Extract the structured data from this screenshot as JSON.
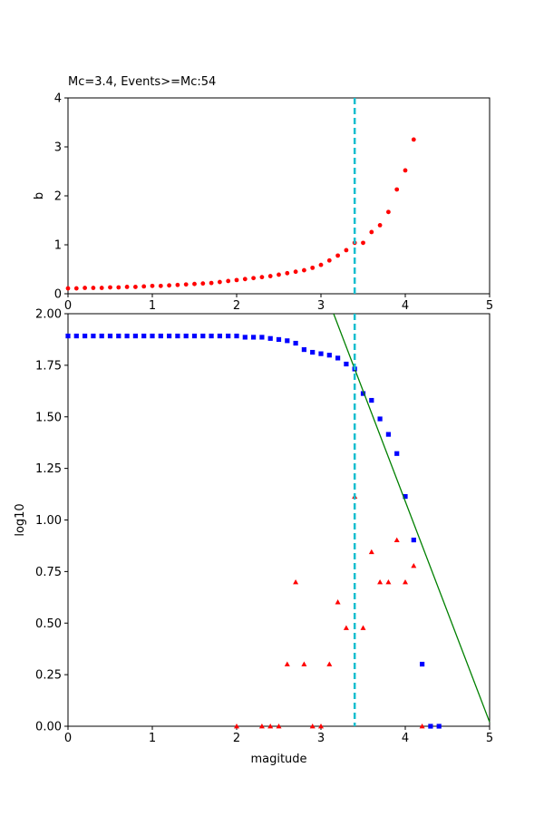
{
  "chart_data": [
    {
      "type": "scatter",
      "title": "Mc=3.4, Events>=Mc:54",
      "xlabel": "",
      "ylabel": "b",
      "xlim": [
        0,
        5
      ],
      "ylim": [
        0,
        4
      ],
      "xticks": [
        "0",
        "1",
        "2",
        "3",
        "4",
        "5"
      ],
      "yticks": [
        "0",
        "1",
        "2",
        "3",
        "4"
      ],
      "mc_line": 3.4,
      "colors": {
        "points": "#ff0000",
        "mc_line": "#17becf"
      },
      "series": [
        {
          "marker": "circle",
          "x": [
            0.0,
            0.1,
            0.2,
            0.3,
            0.4,
            0.5,
            0.6,
            0.7,
            0.8,
            0.9,
            1.0,
            1.1,
            1.2,
            1.3,
            1.4,
            1.5,
            1.6,
            1.7,
            1.8,
            1.9,
            2.0,
            2.1,
            2.2,
            2.3,
            2.4,
            2.5,
            2.6,
            2.7,
            2.8,
            2.9,
            3.0,
            3.1,
            3.2,
            3.3,
            3.4,
            3.5,
            3.6,
            3.7,
            3.8,
            3.9,
            4.0,
            4.1
          ],
          "y": [
            0.11,
            0.11,
            0.12,
            0.12,
            0.12,
            0.13,
            0.13,
            0.14,
            0.14,
            0.15,
            0.16,
            0.16,
            0.17,
            0.18,
            0.19,
            0.2,
            0.21,
            0.22,
            0.24,
            0.26,
            0.28,
            0.3,
            0.32,
            0.34,
            0.36,
            0.39,
            0.42,
            0.45,
            0.48,
            0.53,
            0.59,
            0.68,
            0.78,
            0.89,
            1.04,
            1.04,
            1.26,
            1.4,
            1.67,
            2.13,
            2.52,
            3.15
          ]
        }
      ]
    },
    {
      "type": "scatter",
      "title": "",
      "xlabel": "magitude",
      "ylabel": "log10",
      "xlim": [
        0,
        5
      ],
      "ylim": [
        0,
        2
      ],
      "xticks": [
        "0",
        "1",
        "2",
        "3",
        "4",
        "5"
      ],
      "yticks": [
        "0.00",
        "0.25",
        "0.50",
        "0.75",
        "1.00",
        "1.25",
        "1.50",
        "1.75",
        "2.00"
      ],
      "mc_line": 3.4,
      "colors": {
        "cumulative": "#0000ff",
        "incremental": "#ff0000",
        "fit_line": "#008000",
        "mc_line": "#17becf"
      },
      "fit_line": {
        "x": [
          3.15,
          5.0
        ],
        "y": [
          2.0,
          0.02
        ]
      },
      "series": [
        {
          "marker": "square",
          "x": [
            0.0,
            0.1,
            0.2,
            0.3,
            0.4,
            0.5,
            0.6,
            0.7,
            0.8,
            0.9,
            1.0,
            1.1,
            1.2,
            1.3,
            1.4,
            1.5,
            1.6,
            1.7,
            1.8,
            1.9,
            2.0,
            2.1,
            2.2,
            2.3,
            2.4,
            2.5,
            2.6,
            2.7,
            2.8,
            2.9,
            3.0,
            3.1,
            3.2,
            3.3,
            3.4,
            3.5,
            3.6,
            3.7,
            3.8,
            3.9,
            4.0,
            4.1,
            4.2,
            4.3,
            4.4
          ],
          "y": [
            1.892,
            1.892,
            1.892,
            1.892,
            1.892,
            1.892,
            1.892,
            1.892,
            1.892,
            1.892,
            1.892,
            1.892,
            1.892,
            1.892,
            1.892,
            1.892,
            1.892,
            1.892,
            1.892,
            1.892,
            1.892,
            1.886,
            1.886,
            1.886,
            1.88,
            1.875,
            1.869,
            1.857,
            1.826,
            1.813,
            1.806,
            1.799,
            1.785,
            1.756,
            1.732,
            1.613,
            1.58,
            1.49,
            1.415,
            1.322,
            1.114,
            0.903,
            0.301,
            0.0,
            0.0
          ]
        },
        {
          "marker": "triangle",
          "x": [
            2.0,
            2.3,
            2.4,
            2.5,
            2.6,
            2.7,
            2.8,
            2.9,
            3.0,
            3.1,
            3.2,
            3.3,
            3.4,
            3.5,
            3.6,
            3.7,
            3.8,
            3.9,
            4.0,
            4.1,
            4.2
          ],
          "y": [
            0.0,
            0.0,
            0.0,
            0.0,
            0.301,
            0.699,
            0.301,
            0.0,
            0.0,
            0.301,
            0.602,
            0.477,
            1.114,
            0.477,
            0.845,
            0.699,
            0.699,
            0.903,
            0.699,
            0.778,
            0.0
          ]
        }
      ]
    }
  ]
}
